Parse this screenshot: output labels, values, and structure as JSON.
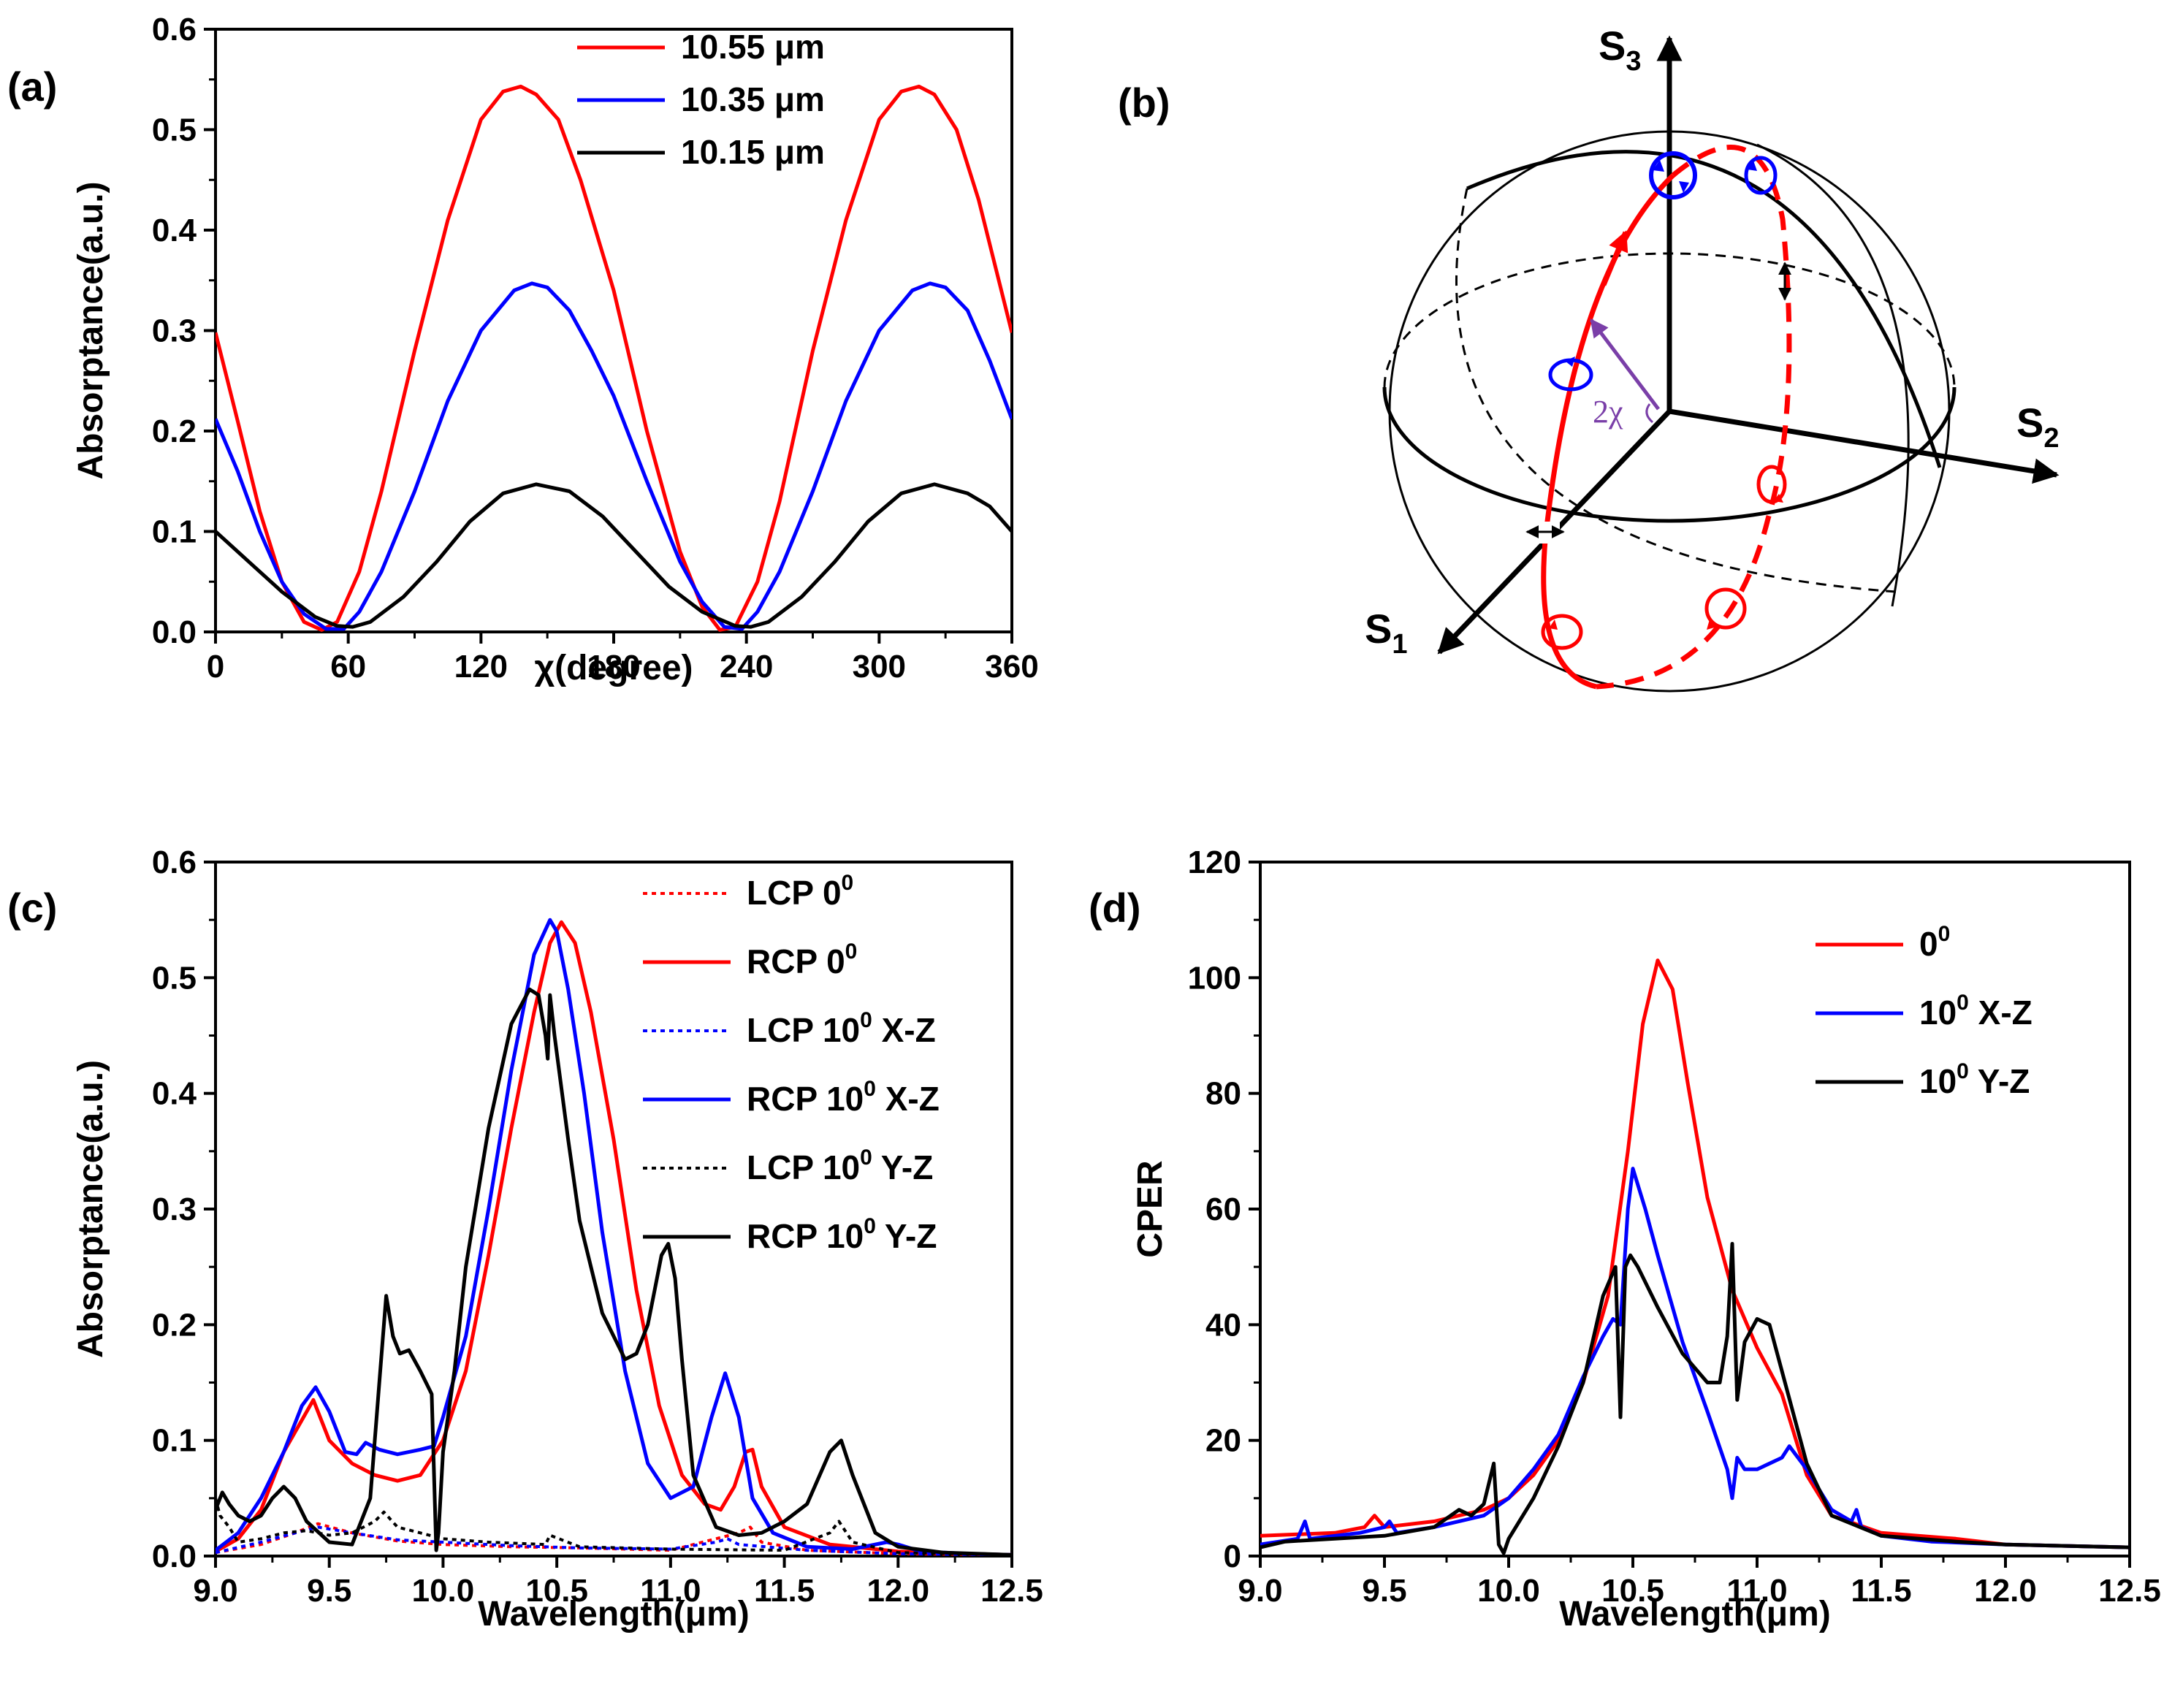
{
  "panels": {
    "a": {
      "label": "(a)"
    },
    "b": {
      "label": "(b)",
      "s1": "S",
      "s1_sub": "1",
      "s2": "S",
      "s2_sub": "2",
      "s3": "S",
      "s3_sub": "3",
      "angle": "2χ"
    },
    "c": {
      "label": "(c)"
    },
    "d": {
      "label": "(d)"
    }
  },
  "colors": {
    "red": "#ff0000",
    "blue": "#0000ff",
    "black": "#000000",
    "purple": "#7a3fa8"
  },
  "chart_data": [
    {
      "id": "a",
      "type": "line",
      "title": "",
      "xlabel": "χ(degree)",
      "ylabel": "Absorptance(a.u.)",
      "xlim": [
        0,
        360
      ],
      "ylim": [
        0,
        0.6
      ],
      "xticks": [
        0,
        60,
        120,
        180,
        240,
        300,
        360
      ],
      "xtick_labels": [
        "0",
        "60",
        "120",
        "180",
        "240",
        "300",
        "360"
      ],
      "yticks": [
        0.0,
        0.1,
        0.2,
        0.3,
        0.4,
        0.5,
        0.6
      ],
      "ytick_labels": [
        "0.0",
        "0.1",
        "0.2",
        "0.3",
        "0.4",
        "0.5",
        "0.6"
      ],
      "legend_position": "top-right",
      "series": [
        {
          "name": "10.55 μm",
          "color": "#ff0000",
          "style": "solid",
          "x": [
            0,
            10,
            20,
            30,
            40,
            48,
            55,
            65,
            75,
            90,
            105,
            120,
            130,
            138,
            145,
            155,
            165,
            180,
            195,
            210,
            220,
            228,
            235,
            245,
            255,
            270,
            285,
            300,
            310,
            318,
            325,
            335,
            345,
            360
          ],
          "y": [
            0.298,
            0.21,
            0.12,
            0.05,
            0.01,
            0.002,
            0.01,
            0.06,
            0.14,
            0.28,
            0.41,
            0.51,
            0.538,
            0.543,
            0.535,
            0.51,
            0.45,
            0.34,
            0.2,
            0.08,
            0.025,
            0.002,
            0.005,
            0.05,
            0.13,
            0.28,
            0.41,
            0.51,
            0.538,
            0.543,
            0.535,
            0.5,
            0.43,
            0.298
          ]
        },
        {
          "name": "10.35 μm",
          "color": "#0000ff",
          "style": "solid",
          "x": [
            0,
            10,
            20,
            30,
            40,
            50,
            58,
            65,
            75,
            90,
            105,
            120,
            135,
            143,
            150,
            160,
            170,
            180,
            195,
            210,
            220,
            230,
            238,
            245,
            255,
            270,
            285,
            300,
            315,
            323,
            330,
            340,
            350,
            360
          ],
          "y": [
            0.212,
            0.16,
            0.1,
            0.05,
            0.018,
            0.003,
            0.003,
            0.02,
            0.06,
            0.14,
            0.23,
            0.3,
            0.34,
            0.347,
            0.343,
            0.32,
            0.28,
            0.235,
            0.15,
            0.07,
            0.03,
            0.005,
            0.003,
            0.02,
            0.06,
            0.14,
            0.23,
            0.3,
            0.34,
            0.347,
            0.343,
            0.32,
            0.27,
            0.212
          ]
        },
        {
          "name": "10.15 μm",
          "color": "#000000",
          "style": "solid",
          "x": [
            0,
            15,
            30,
            45,
            55,
            62,
            70,
            85,
            100,
            115,
            130,
            145,
            160,
            175,
            190,
            205,
            220,
            235,
            242,
            250,
            265,
            280,
            295,
            310,
            325,
            340,
            350,
            360
          ],
          "y": [
            0.1,
            0.07,
            0.04,
            0.015,
            0.006,
            0.005,
            0.01,
            0.035,
            0.07,
            0.11,
            0.138,
            0.147,
            0.14,
            0.115,
            0.08,
            0.045,
            0.02,
            0.006,
            0.005,
            0.01,
            0.035,
            0.07,
            0.11,
            0.138,
            0.147,
            0.138,
            0.125,
            0.1
          ]
        }
      ]
    },
    {
      "id": "c",
      "type": "line",
      "title": "",
      "xlabel": "Wavelength(μm)",
      "ylabel": "Absorptance(a.u.)",
      "xlim": [
        9.0,
        12.5
      ],
      "ylim": [
        0,
        0.6
      ],
      "xticks": [
        9.0,
        9.5,
        10.0,
        10.5,
        11.0,
        11.5,
        12.0,
        12.5
      ],
      "xtick_labels": [
        "9.0",
        "9.5",
        "10.0",
        "10.5",
        "11.0",
        "11.5",
        "12.0",
        "12.5"
      ],
      "yticks": [
        0.0,
        0.1,
        0.2,
        0.3,
        0.4,
        0.5,
        0.6
      ],
      "ytick_labels": [
        "0.0",
        "0.1",
        "0.2",
        "0.3",
        "0.4",
        "0.5",
        "0.6"
      ],
      "legend_position": "top-right",
      "series": [
        {
          "name": "LCP 0",
          "sup": "0",
          "suffix": "",
          "color": "#ff0000",
          "style": "dotted",
          "x": [
            9.0,
            9.2,
            9.35,
            9.45,
            9.6,
            9.8,
            10.0,
            10.3,
            10.6,
            11.0,
            11.3,
            11.35,
            11.4,
            11.6,
            12.0,
            12.5
          ],
          "y": [
            0.003,
            0.01,
            0.02,
            0.028,
            0.02,
            0.013,
            0.01,
            0.008,
            0.007,
            0.005,
            0.02,
            0.025,
            0.012,
            0.005,
            0.002,
            0.001
          ]
        },
        {
          "name": "RCP 0",
          "sup": "0",
          "suffix": "",
          "color": "#ff0000",
          "style": "solid",
          "x": [
            9.0,
            9.1,
            9.2,
            9.3,
            9.43,
            9.5,
            9.6,
            9.7,
            9.8,
            9.9,
            10.0,
            10.1,
            10.2,
            10.3,
            10.4,
            10.47,
            10.52,
            10.58,
            10.65,
            10.75,
            10.85,
            10.95,
            11.05,
            11.15,
            11.22,
            11.28,
            11.33,
            11.36,
            11.4,
            11.5,
            11.7,
            12.0,
            12.3,
            12.5
          ],
          "y": [
            0.004,
            0.015,
            0.04,
            0.09,
            0.135,
            0.1,
            0.08,
            0.07,
            0.065,
            0.07,
            0.1,
            0.16,
            0.26,
            0.37,
            0.47,
            0.53,
            0.548,
            0.53,
            0.47,
            0.36,
            0.23,
            0.13,
            0.07,
            0.045,
            0.04,
            0.06,
            0.09,
            0.092,
            0.06,
            0.025,
            0.01,
            0.004,
            0.002,
            0.001
          ]
        },
        {
          "name": "LCP 10",
          "sup": "0",
          "suffix": " X-Z",
          "color": "#0000ff",
          "style": "dotted",
          "x": [
            9.0,
            9.2,
            9.35,
            9.45,
            9.6,
            9.8,
            10.0,
            10.3,
            10.6,
            11.0,
            11.2,
            11.25,
            11.3,
            11.6,
            12.0,
            12.5
          ],
          "y": [
            0.003,
            0.012,
            0.02,
            0.025,
            0.02,
            0.014,
            0.012,
            0.009,
            0.007,
            0.006,
            0.012,
            0.015,
            0.01,
            0.005,
            0.002,
            0.001
          ]
        },
        {
          "name": "RCP 10",
          "sup": "0",
          "suffix": " X-Z",
          "color": "#0000ff",
          "style": "solid",
          "x": [
            9.0,
            9.1,
            9.2,
            9.3,
            9.38,
            9.44,
            9.5,
            9.57,
            9.62,
            9.66,
            9.72,
            9.8,
            9.9,
            9.96,
            10.0,
            10.1,
            10.2,
            10.3,
            10.4,
            10.47,
            10.5,
            10.55,
            10.62,
            10.7,
            10.8,
            10.9,
            11.0,
            11.1,
            11.18,
            11.24,
            11.3,
            11.36,
            11.45,
            11.6,
            11.8,
            11.95,
            12.0,
            12.1,
            12.3,
            12.5
          ],
          "y": [
            0.005,
            0.02,
            0.05,
            0.09,
            0.13,
            0.146,
            0.125,
            0.09,
            0.088,
            0.098,
            0.092,
            0.088,
            0.092,
            0.095,
            0.12,
            0.19,
            0.3,
            0.42,
            0.52,
            0.55,
            0.54,
            0.49,
            0.4,
            0.28,
            0.16,
            0.08,
            0.05,
            0.06,
            0.12,
            0.158,
            0.12,
            0.05,
            0.02,
            0.008,
            0.006,
            0.012,
            0.01,
            0.004,
            0.002,
            0.001
          ]
        },
        {
          "name": "LCP 10",
          "sup": "0",
          "suffix": " Y-Z",
          "color": "#000000",
          "style": "dotted",
          "x": [
            9.0,
            9.02,
            9.06,
            9.1,
            9.2,
            9.3,
            9.4,
            9.5,
            9.6,
            9.7,
            9.74,
            9.8,
            9.9,
            10.0,
            10.2,
            10.45,
            10.47,
            10.6,
            11.0,
            11.5,
            11.7,
            11.74,
            11.8,
            12.0,
            12.5
          ],
          "y": [
            0.05,
            0.035,
            0.025,
            0.012,
            0.015,
            0.02,
            0.022,
            0.018,
            0.02,
            0.03,
            0.038,
            0.025,
            0.02,
            0.015,
            0.012,
            0.01,
            0.018,
            0.008,
            0.006,
            0.005,
            0.02,
            0.03,
            0.012,
            0.003,
            0.001
          ]
        },
        {
          "name": "RCP 10",
          "sup": "0",
          "suffix": " Y-Z",
          "color": "#000000",
          "style": "solid",
          "x": [
            9.0,
            9.03,
            9.06,
            9.1,
            9.15,
            9.2,
            9.25,
            9.3,
            9.35,
            9.4,
            9.5,
            9.6,
            9.68,
            9.72,
            9.75,
            9.78,
            9.81,
            9.85,
            9.9,
            9.95,
            9.97,
            9.98,
            10.0,
            10.05,
            10.1,
            10.2,
            10.3,
            10.38,
            10.42,
            10.45,
            10.46,
            10.47,
            10.49,
            10.55,
            10.6,
            10.7,
            10.8,
            10.85,
            10.9,
            10.93,
            10.96,
            10.99,
            11.02,
            11.05,
            11.1,
            11.2,
            11.3,
            11.4,
            11.5,
            11.6,
            11.7,
            11.75,
            11.8,
            11.9,
            12.0,
            12.2,
            12.5
          ],
          "y": [
            0.04,
            0.055,
            0.045,
            0.035,
            0.03,
            0.035,
            0.05,
            0.06,
            0.05,
            0.03,
            0.012,
            0.01,
            0.05,
            0.15,
            0.225,
            0.19,
            0.175,
            0.178,
            0.16,
            0.14,
            0.005,
            0.02,
            0.09,
            0.16,
            0.25,
            0.37,
            0.46,
            0.49,
            0.485,
            0.45,
            0.43,
            0.485,
            0.45,
            0.36,
            0.29,
            0.21,
            0.17,
            0.175,
            0.2,
            0.23,
            0.26,
            0.27,
            0.24,
            0.17,
            0.07,
            0.025,
            0.018,
            0.02,
            0.03,
            0.045,
            0.09,
            0.1,
            0.07,
            0.02,
            0.008,
            0.003,
            0.001
          ]
        }
      ]
    },
    {
      "id": "d",
      "type": "line",
      "title": "",
      "xlabel": "Wavelength(μm)",
      "ylabel": "CPER",
      "xlim": [
        9.0,
        12.5
      ],
      "ylim": [
        0,
        120
      ],
      "xticks": [
        9.0,
        9.5,
        10.0,
        10.5,
        11.0,
        11.5,
        12.0,
        12.5
      ],
      "xtick_labels": [
        "9.0",
        "9.5",
        "10.0",
        "10.5",
        "11.0",
        "11.5",
        "12.0",
        "12.5"
      ],
      "yticks": [
        0,
        20,
        40,
        60,
        80,
        100,
        120
      ],
      "ytick_labels": [
        "0",
        "20",
        "40",
        "60",
        "80",
        "100",
        "120"
      ],
      "legend_position": "top-right",
      "series": [
        {
          "name": "0",
          "sup": "0",
          "suffix": "",
          "color": "#ff0000",
          "style": "solid",
          "x": [
            9.0,
            9.3,
            9.42,
            9.46,
            9.5,
            9.7,
            9.9,
            10.0,
            10.1,
            10.2,
            10.3,
            10.4,
            10.48,
            10.54,
            10.6,
            10.66,
            10.72,
            10.8,
            10.9,
            11.0,
            11.1,
            11.2,
            11.3,
            11.5,
            11.8,
            12.0,
            12.5
          ],
          "y": [
            3.5,
            4,
            5,
            7,
            5,
            6,
            8,
            10,
            14,
            20,
            30,
            45,
            70,
            92,
            103,
            98,
            82,
            62,
            46,
            36,
            28,
            14,
            7,
            4,
            3,
            2,
            1.5
          ]
        },
        {
          "name": "10",
          "sup": "0",
          "suffix": " X-Z",
          "color": "#0000ff",
          "style": "solid",
          "x": [
            9.0,
            9.15,
            9.18,
            9.2,
            9.4,
            9.5,
            9.52,
            9.55,
            9.7,
            9.9,
            10.0,
            10.1,
            10.2,
            10.3,
            10.38,
            10.42,
            10.45,
            10.48,
            10.5,
            10.55,
            10.6,
            10.7,
            10.8,
            10.88,
            10.9,
            10.92,
            10.95,
            11.0,
            11.1,
            11.13,
            11.2,
            11.3,
            11.38,
            11.4,
            11.42,
            11.5,
            11.7,
            12.0,
            12.5
          ],
          "y": [
            2,
            3,
            6,
            3,
            4,
            5,
            6,
            4,
            5,
            7,
            10,
            15,
            21,
            31,
            38,
            41,
            40,
            60,
            67,
            60,
            52,
            37,
            25,
            15,
            10,
            17,
            15,
            15,
            17,
            19,
            15,
            8,
            6,
            8,
            5,
            3.5,
            2.5,
            2,
            1.5
          ]
        },
        {
          "name": "10",
          "sup": "0",
          "suffix": " Y-Z",
          "color": "#000000",
          "style": "solid",
          "x": [
            9.0,
            9.1,
            9.3,
            9.5,
            9.7,
            9.8,
            9.85,
            9.9,
            9.94,
            9.96,
            9.98,
            10.0,
            10.1,
            10.2,
            10.3,
            10.38,
            10.43,
            10.45,
            10.47,
            10.49,
            10.52,
            10.6,
            10.7,
            10.8,
            10.85,
            10.88,
            10.9,
            10.92,
            10.95,
            11.0,
            11.05,
            11.1,
            11.2,
            11.3,
            11.5,
            11.8,
            12.0,
            12.5
          ],
          "y": [
            1.5,
            2.5,
            3,
            3.5,
            5,
            8,
            7,
            9,
            16,
            2,
            0.5,
            3,
            10,
            19,
            30,
            45,
            50,
            24,
            50,
            52,
            50,
            43,
            35,
            30,
            30,
            38,
            54,
            27,
            37,
            41,
            40,
            32,
            16,
            7,
            3.5,
            2.5,
            2,
            1.5
          ]
        }
      ]
    }
  ]
}
